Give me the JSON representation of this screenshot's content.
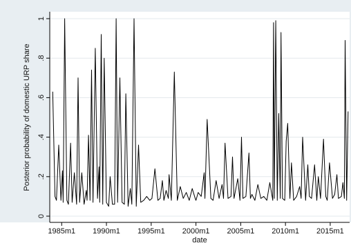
{
  "chart_data": {
    "type": "line",
    "title": "",
    "xlabel": "date",
    "ylabel": "Posterior probability of domestic URP share",
    "x_ticks": [
      "1985m1",
      "1990m1",
      "1995m1",
      "2000m1",
      "2005m1",
      "2010m1",
      "2015m1"
    ],
    "y_ticks": [
      "0",
      ".2",
      ".4",
      ".6",
      ".8",
      "1"
    ],
    "xlim": [
      "1983m9",
      "2017m3"
    ],
    "ylim": [
      0,
      1
    ],
    "grid": true,
    "legend": "none",
    "colors": {
      "line": "#000000",
      "plot_bg": "#ffffff",
      "frame_bg": "#e8eef2",
      "grid": "#e3e8ec"
    },
    "series": [
      {
        "x": [
          "1984m1",
          "1984m4",
          "1984m6",
          "1984m9",
          "1984m12",
          "1985m2",
          "1985m3",
          "1985m5",
          "1985m8",
          "1985m10",
          "1986m1",
          "1986m3",
          "1986m6",
          "1986m9",
          "1986m11",
          "1987m1",
          "1987m4",
          "1987m7",
          "1987m10",
          "1987m11",
          "1988m1",
          "1988m3",
          "1988m5",
          "1988m7",
          "1988m10",
          "1989m1",
          "1989m3",
          "1989m4",
          "1989m6",
          "1989m8",
          "1989m10",
          "1990m1",
          "1990m4",
          "1990m6",
          "1990m9",
          "1990m12",
          "1991m2",
          "1991m4",
          "1991m7",
          "1991m10",
          "1992m1",
          "1992m3",
          "1992m6",
          "1992m9",
          "1992m11",
          "1993m2",
          "1993m5",
          "1993m8",
          "1993m11",
          "1994m3",
          "1994m7",
          "1994m11",
          "1995m2",
          "1995m6",
          "1995m10",
          "1996m1",
          "1996m4",
          "1996m6",
          "1996m9",
          "1996m12",
          "1997m1",
          "1997m4",
          "1997m8",
          "1997m12",
          "1998m4",
          "1998m8",
          "1998m12",
          "1999m4",
          "1999m8",
          "1999m12",
          "2000m1",
          "2000m4",
          "2000m8",
          "2000m12",
          "2001m1",
          "2001m4",
          "2001m9",
          "2001m12",
          "2002m4",
          "2002m8",
          "2002m12",
          "2003m2",
          "2003m4",
          "2003m8",
          "2003m12",
          "2004m2",
          "2004m4",
          "2004m9",
          "2004m12",
          "2005m2",
          "2005m4",
          "2005m8",
          "2005m12",
          "2006m2",
          "2006m4",
          "2006m8",
          "2006m12",
          "2007m4",
          "2007m8",
          "2007m12",
          "2008m4",
          "2008m8",
          "2008m9",
          "2008m10",
          "2008m12",
          "2009m2",
          "2009m4",
          "2009m6",
          "2009m7",
          "2009m9",
          "2009m12",
          "2010m2",
          "2010m4",
          "2010m7",
          "2010m9",
          "2010m12",
          "2011m4",
          "2011m8",
          "2011m10",
          "2011m12",
          "2012m4",
          "2012m7",
          "2012m9",
          "2012m12",
          "2013m4",
          "2013m7",
          "2013m9",
          "2013m12",
          "2014m4",
          "2014m7",
          "2014m9",
          "2014m12",
          "2015m4",
          "2015m7",
          "2015m10",
          "2015m12",
          "2016m4",
          "2016m6",
          "2016m8",
          "2016m9",
          "2016m11",
          "2017m1"
        ],
        "y": [
          0.63,
          0.1,
          0.08,
          0.36,
          0.08,
          0.23,
          0.07,
          1.0,
          0.08,
          0.06,
          0.37,
          0.07,
          0.22,
          0.06,
          0.7,
          0.07,
          0.22,
          0.06,
          0.13,
          0.08,
          0.41,
          0.08,
          0.74,
          0.07,
          0.85,
          0.09,
          0.25,
          0.07,
          0.92,
          0.06,
          0.8,
          0.07,
          0.05,
          0.2,
          0.06,
          0.06,
          1.0,
          0.07,
          0.7,
          0.07,
          0.06,
          0.62,
          0.05,
          0.14,
          0.06,
          1.0,
          0.05,
          0.36,
          0.07,
          0.08,
          0.1,
          0.08,
          0.09,
          0.24,
          0.08,
          0.09,
          0.18,
          0.08,
          0.13,
          0.09,
          0.21,
          0.08,
          0.73,
          0.08,
          0.15,
          0.09,
          0.12,
          0.08,
          0.14,
          0.09,
          0.08,
          0.12,
          0.1,
          0.22,
          0.09,
          0.49,
          0.09,
          0.08,
          0.18,
          0.09,
          0.16,
          0.09,
          0.37,
          0.09,
          0.1,
          0.3,
          0.09,
          0.19,
          0.08,
          0.4,
          0.09,
          0.1,
          0.32,
          0.09,
          0.11,
          0.08,
          0.16,
          0.09,
          0.1,
          0.08,
          0.17,
          0.08,
          0.98,
          0.09,
          0.99,
          0.08,
          0.52,
          0.09,
          0.93,
          0.09,
          0.08,
          0.38,
          0.47,
          0.09,
          0.27,
          0.08,
          0.1,
          0.15,
          0.09,
          0.4,
          0.08,
          0.26,
          0.1,
          0.09,
          0.26,
          0.08,
          0.2,
          0.09,
          0.39,
          0.1,
          0.08,
          0.27,
          0.09,
          0.11,
          0.21,
          0.09,
          0.1,
          0.17,
          0.09,
          0.89,
          0.08,
          0.53
        ]
      }
    ]
  }
}
